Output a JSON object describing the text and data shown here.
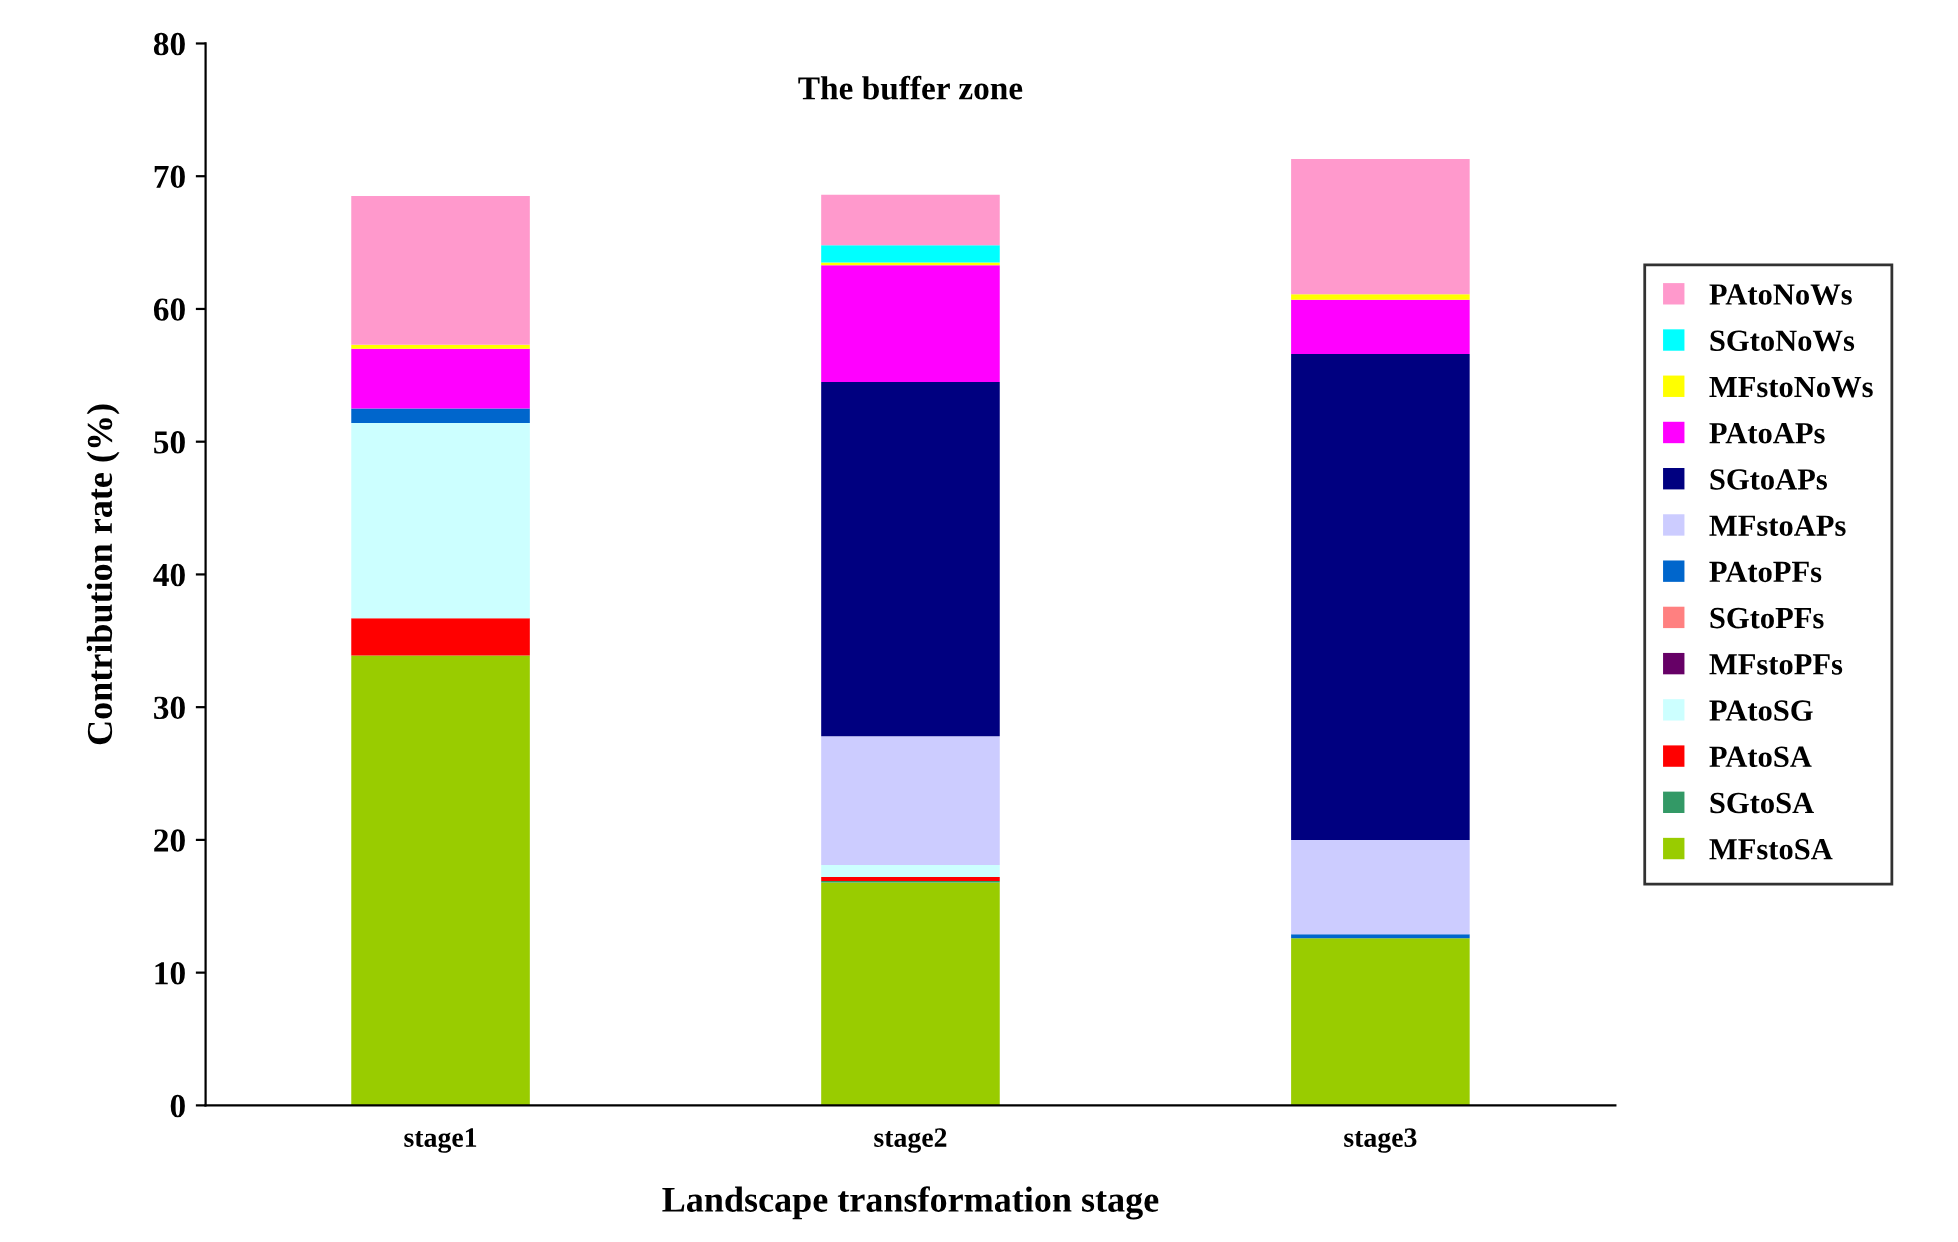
{
  "chart_data": {
    "type": "bar",
    "stacked": true,
    "title": "The buffer zone",
    "xlabel": "Landscape transformation stage",
    "ylabel": "Contribution rate (%)",
    "categories": [
      "stage1",
      "stage2",
      "stage3"
    ],
    "series": [
      {
        "name": "MFstoSA",
        "color": "#99cc00",
        "values": [
          33.9,
          16.8,
          12.6
        ]
      },
      {
        "name": "SGtoSA",
        "color": "#339966",
        "values": [
          0,
          0.1,
          0
        ]
      },
      {
        "name": "PAtoSA",
        "color": "#ff0000",
        "values": [
          2.8,
          0.3,
          0
        ]
      },
      {
        "name": "PAtoSG",
        "color": "#ccffff",
        "values": [
          14.7,
          0.9,
          0
        ]
      },
      {
        "name": "MFstoPFs",
        "color": "#660066",
        "values": [
          0,
          0,
          0
        ]
      },
      {
        "name": "SGtoPFs",
        "color": "#ff8080",
        "values": [
          0,
          0,
          0
        ]
      },
      {
        "name": "PAtoPFs",
        "color": "#0066cc",
        "values": [
          1.1,
          0,
          0.3
        ]
      },
      {
        "name": "MFstoAPs",
        "color": "#ccccff",
        "values": [
          0,
          9.7,
          7.1
        ]
      },
      {
        "name": "SGtoAPs",
        "color": "#000080",
        "values": [
          0,
          26.7,
          36.6
        ]
      },
      {
        "name": "PAtoAPs",
        "color": "#ff00ff",
        "values": [
          4.5,
          8.8,
          4.1
        ]
      },
      {
        "name": "MFstoNoWs",
        "color": "#ffff00",
        "values": [
          0.3,
          0.2,
          0.4
        ]
      },
      {
        "name": "SGtoNoWs",
        "color": "#00ffff",
        "values": [
          0,
          1.3,
          0
        ]
      },
      {
        "name": "PAtoNoWs",
        "color": "#ff99cc",
        "values": [
          11.2,
          3.8,
          10.2
        ]
      }
    ],
    "ylim": [
      0,
      80
    ],
    "yticks": [
      0,
      10,
      20,
      30,
      40,
      50,
      60,
      70,
      80
    ],
    "grid": false,
    "legend": "right"
  }
}
